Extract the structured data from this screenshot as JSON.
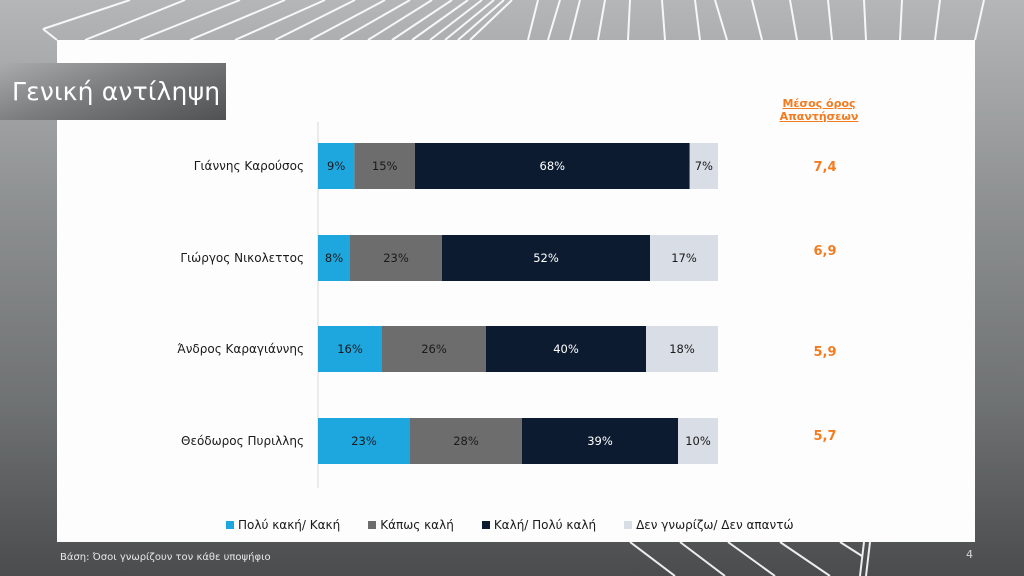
{
  "slide": {
    "title": "Γενική αντίληψη",
    "footnote": "Βάση: Όσοι γνωρίζουν τον κάθε υποψήφιο",
    "page_number": "4"
  },
  "average": {
    "header": "Μέσος όρος Απαντήσεων",
    "values": [
      "7,4",
      "6,9",
      "5,9",
      "5,7"
    ]
  },
  "colors": {
    "bad": "#1ea7df",
    "somewhat": "#6d6d6d",
    "good": "#0d1b31",
    "dk": "#d9dde6",
    "accent": "#f47b20"
  },
  "chart_data": {
    "type": "bar",
    "orientation": "horizontal",
    "stacked": true,
    "title": "Γενική αντίληψη",
    "categories": [
      "Γιάννης Καρούσος",
      "Γιώργος Νικολεττος",
      "Άνδρος Καραγιάννης",
      "Θεόδωρος  Πυριλλης"
    ],
    "series": [
      {
        "name": "Πολύ κακή/ Κακή",
        "color": "#1ea7df",
        "label_color": "#1a1a1a",
        "values": [
          9,
          8,
          16,
          23
        ],
        "labels": [
          "9%",
          "8%",
          "16%",
          "23%"
        ]
      },
      {
        "name": "Κάπως καλή",
        "color": "#6d6d6d",
        "label_color": "#1a1a1a",
        "values": [
          15,
          23,
          26,
          28
        ],
        "labels": [
          "15%",
          "23%",
          "26%",
          "28%"
        ]
      },
      {
        "name": "Καλή/ Πολύ καλή",
        "color": "#0d1b31",
        "label_color": "#ffffff",
        "values": [
          68,
          52,
          40,
          39
        ],
        "labels": [
          "68%",
          "52%",
          "40%",
          "39%"
        ]
      },
      {
        "name": "Δεν γνωρίζω/ Δεν απαντώ",
        "color": "#d9dde6",
        "label_color": "#1a1a1a",
        "values": [
          7,
          17,
          18,
          10
        ],
        "labels": [
          "7%",
          "17%",
          "18%",
          "10%"
        ]
      }
    ],
    "xlim": [
      0,
      100
    ],
    "legend_position": "bottom",
    "grid": false
  }
}
